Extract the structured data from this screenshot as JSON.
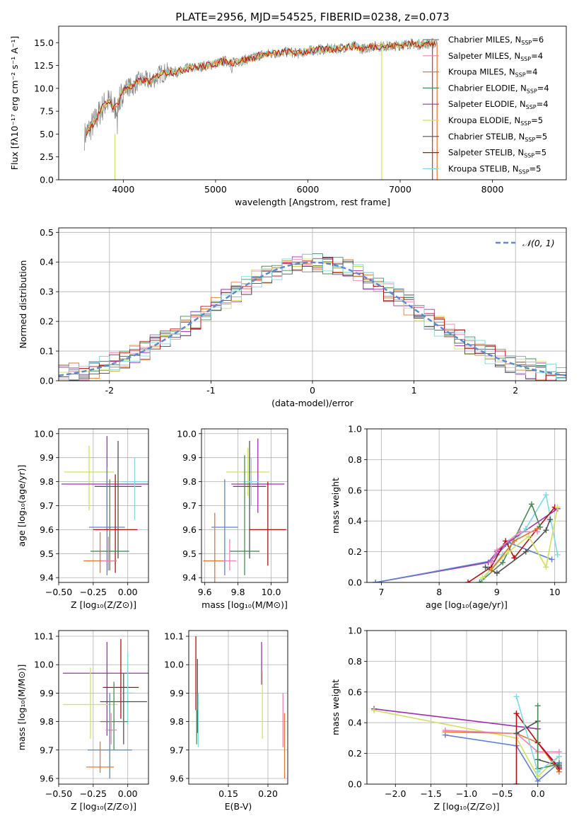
{
  "figure_title": "PLATE=2956, MJD=54525, FIBERID=0238, z=0.073",
  "colors": {
    "Chabrier MILES": "#808080",
    "Salpeter MILES": "#f080b8",
    "Kroupa MILES": "#e07830",
    "Chabrier ELODIE": "#4a8a5a",
    "Salpeter ELODIE": "#9a30b0",
    "Kroupa ELODIE": "#d0e060",
    "Chabrier STELIB": "#505050",
    "Salpeter STELIB": "#b01010",
    "Kroupa STELIB": "#80d8e0",
    "ZblueLine": "#6080d0",
    "gauss": "#5a8ad0"
  },
  "chart_data": [
    {
      "id": "spectrum",
      "type": "line",
      "title": "PLATE=2956, MJD=54525, FIBERID=0238, z=0.073",
      "xlabel": "wavelength [Angstrom, rest frame]",
      "ylabel": "Flux [fλ10⁻¹⁷ erg cm⁻² s⁻¹ A⁻¹]",
      "xlim": [
        3300,
        8800
      ],
      "ylim": [
        0,
        16.8
      ],
      "xticks": [
        4000,
        5000,
        6000,
        7000,
        8000
      ],
      "yticks": [
        0.0,
        2.5,
        5.0,
        7.5,
        10.0,
        12.5,
        15.0
      ],
      "legend_position": "right",
      "legend": [
        {
          "label": "Chabrier MILES, N",
          "sub": "SSP",
          "suffix": "=6"
        },
        {
          "label": "Salpeter MILES, N",
          "sub": "SSP",
          "suffix": "=4"
        },
        {
          "label": "Kroupa MILES, N",
          "sub": "SSP",
          "suffix": "=4"
        },
        {
          "label": "Chabrier ELODIE, N",
          "sub": "SSP",
          "suffix": "=4"
        },
        {
          "label": "Salpeter ELODIE, N",
          "sub": "SSP",
          "suffix": "=4"
        },
        {
          "label": "Kroupa ELODIE, N",
          "sub": "SSP",
          "suffix": "=5"
        },
        {
          "label": "Chabrier STELIB, N",
          "sub": "SSP",
          "suffix": "=5"
        },
        {
          "label": "Salpeter STELIB, N",
          "sub": "SSP",
          "suffix": "=5"
        },
        {
          "label": "Kroupa STELIB, N",
          "sub": "SSP",
          "suffix": "=5"
        }
      ],
      "series": [
        {
          "name": "data",
          "x": [
            3580,
            3650,
            3700,
            3750,
            3800,
            3850,
            3900,
            3950,
            4000,
            4050,
            4100,
            4150,
            4200,
            4300,
            4400,
            4500,
            4600,
            4700,
            4800,
            4900,
            5000,
            5100,
            5200,
            5300,
            5400,
            5500,
            5600,
            5700,
            5800,
            5900,
            6000,
            6100,
            6200,
            6300,
            6400,
            6500,
            6600,
            6700,
            6800,
            6900,
            7000,
            7100,
            7200,
            7300,
            7400
          ],
          "y": [
            4.8,
            5.8,
            6.5,
            7.5,
            8.3,
            8.6,
            7.8,
            8.6,
            9.8,
            10.2,
            10.1,
            10.7,
            10.9,
            10.8,
            11.6,
            11.8,
            11.8,
            12.2,
            12.3,
            12.5,
            12.7,
            13.0,
            12.8,
            13.1,
            13.3,
            13.7,
            13.8,
            13.9,
            14.0,
            13.8,
            14.1,
            14.2,
            14.3,
            14.3,
            14.5,
            14.6,
            14.3,
            14.6,
            14.6,
            14.6,
            14.7,
            14.9,
            14.8,
            14.9,
            14.9
          ]
        }
      ]
    },
    {
      "id": "residuals",
      "type": "histogram",
      "xlabel": "(data-model)/error",
      "ylabel": "Normed distribution",
      "xlim": [
        -2.5,
        2.5
      ],
      "ylim": [
        0,
        0.515
      ],
      "xticks": [
        -2,
        -1,
        0,
        1,
        2
      ],
      "yticks": [
        0.0,
        0.1,
        0.2,
        0.3,
        0.4,
        0.5
      ],
      "grid": true,
      "legend_position": "top-right",
      "gauss_label": "𝒩(0, 1)",
      "bin_width": 0.1
    },
    {
      "id": "age_vs_Z",
      "type": "errorbar",
      "xlabel": "Z [log₁₀(Z/Z⊙)]",
      "ylabel": "age  [log₁₀(age/yr)]",
      "xlim": [
        -0.5,
        0.15
      ],
      "ylim": [
        9.38,
        10.02
      ],
      "xticks": [
        -0.5,
        -0.25,
        0.0
      ],
      "xticklabels": [
        "−0.50",
        "−0.25",
        "0.00"
      ],
      "yticks": [
        9.4,
        9.5,
        9.6,
        9.7,
        9.8,
        9.9,
        10.0
      ],
      "grid": true,
      "points": [
        {
          "model": "Kroupa ELODIE",
          "x": -0.28,
          "y": 9.84,
          "xerr": 0.18,
          "yerr": [
            0.16,
            0.11
          ]
        },
        {
          "model": "Salpeter ELODIE",
          "x": -0.15,
          "y": 9.79,
          "xerr": 0.33,
          "yerr": [
            0.19,
            0.2
          ]
        },
        {
          "model": "Chabrier STELIB",
          "x": -0.07,
          "y": 9.78,
          "xerr": 0.17,
          "yerr": [
            0.3,
            0.19
          ]
        },
        {
          "model": "Kroupa STELIB",
          "x": 0.05,
          "y": 9.8,
          "xerr": 0.1,
          "yerr": [
            0.16,
            0.1
          ]
        },
        {
          "model": "ZblueLine",
          "x": -0.15,
          "y": 9.61,
          "xerr": 0.13,
          "yerr": [
            0.2,
            0.25
          ]
        },
        {
          "model": "Salpeter STELIB",
          "x": -0.09,
          "y": 9.6,
          "xerr": 0.16,
          "yerr": [
            0.18,
            0.23
          ]
        },
        {
          "model": "Chabrier ELODIE",
          "x": -0.13,
          "y": 9.51,
          "xerr": 0.14,
          "yerr": [
            0.08,
            0.3
          ]
        },
        {
          "model": "Kroupa MILES",
          "x": -0.2,
          "y": 9.47,
          "xerr": 0.12,
          "yerr": [
            0.05,
            0.12
          ]
        },
        {
          "model": "Salpeter MILES",
          "x": -0.14,
          "y": 9.47,
          "xerr": 0.05,
          "yerr": [
            0.04,
            0.1
          ]
        }
      ]
    },
    {
      "id": "age_vs_mass",
      "type": "errorbar",
      "xlabel": "mass [log₁₀(M/M⊙)]",
      "xlim": [
        9.58,
        10.1
      ],
      "ylim": [
        9.38,
        10.02
      ],
      "xticks": [
        9.6,
        9.8,
        10.0
      ],
      "xticklabels": [
        "9.6",
        "9.8",
        "10.0"
      ],
      "yticks": [
        9.4,
        9.5,
        9.6,
        9.7,
        9.8,
        9.9,
        10.0
      ],
      "grid": true,
      "points": [
        {
          "model": "Kroupa ELODIE",
          "x": 9.86,
          "y": 9.84,
          "xerr": 0.13,
          "yerr": [
            0.1,
            0.1
          ]
        },
        {
          "model": "Salpeter ELODIE",
          "x": 9.92,
          "y": 9.79,
          "xerr": 0.16,
          "yerr": [
            0.12,
            0.19
          ]
        },
        {
          "model": "Chabrier STELIB",
          "x": 9.87,
          "y": 9.78,
          "xerr": 0.1,
          "yerr": [
            0.3,
            0.19
          ]
        },
        {
          "model": "Kroupa STELIB",
          "x": 9.88,
          "y": 9.8,
          "xerr": 0.05,
          "yerr": [
            0.1,
            0.1
          ]
        },
        {
          "model": "ZblueLine",
          "x": 9.72,
          "y": 9.61,
          "xerr": 0.08,
          "yerr": [
            0.2,
            0.2
          ]
        },
        {
          "model": "Salpeter STELIB",
          "x": 9.98,
          "y": 9.6,
          "xerr": 0.11,
          "yerr": [
            0.15,
            0.2
          ]
        },
        {
          "model": "Chabrier ELODIE",
          "x": 9.84,
          "y": 9.51,
          "xerr": 0.09,
          "yerr": [
            0.1,
            0.4
          ]
        },
        {
          "model": "Kroupa MILES",
          "x": 9.66,
          "y": 9.47,
          "xerr": 0.07,
          "yerr": [
            0.1,
            0.2
          ]
        },
        {
          "model": "Salpeter MILES",
          "x": 9.75,
          "y": 9.47,
          "xerr": 0.04,
          "yerr": [
            0.04,
            0.09
          ]
        }
      ]
    },
    {
      "id": "massweight_vs_age",
      "type": "line",
      "xlabel": "age  [log₁₀(age/yr)]",
      "ylabel": "mass weight",
      "xlim": [
        6.75,
        10.2
      ],
      "ylim": [
        0,
        1.0
      ],
      "xticks": [
        7,
        8,
        9,
        10
      ],
      "yticks": [
        0.0,
        0.2,
        0.4,
        0.6,
        0.8,
        1.0
      ],
      "grid": true,
      "series": [
        {
          "model": "Salpeter ELODIE",
          "x": [
            6.9,
            8.85,
            9.0,
            9.15,
            10.05
          ],
          "y": [
            0.0,
            0.13,
            0.2,
            0.25,
            0.48
          ]
        },
        {
          "model": "ZblueLine",
          "x": [
            6.9,
            8.9,
            9.0,
            9.2,
            9.95
          ],
          "y": [
            0.0,
            0.14,
            0.18,
            0.26,
            0.15
          ]
        },
        {
          "model": "Kroupa STELIB",
          "x": [
            8.75,
            9.1,
            9.5,
            9.85,
            10.05
          ],
          "y": [
            0.02,
            0.18,
            0.35,
            0.57,
            0.18
          ]
        },
        {
          "model": "Salpeter STELIB",
          "x": [
            8.5,
            8.9,
            9.15,
            9.3,
            9.7,
            10.0
          ],
          "y": [
            0.0,
            0.1,
            0.27,
            0.16,
            0.35,
            0.49
          ]
        },
        {
          "model": "Chabrier STELIB",
          "x": [
            8.8,
            9.0,
            9.5,
            9.85,
            9.92
          ],
          "y": [
            0.1,
            0.06,
            0.2,
            0.34,
            0.41
          ]
        },
        {
          "model": "Chabrier ELODIE",
          "x": [
            8.7,
            9.1,
            9.6,
            9.75
          ],
          "y": [
            0.0,
            0.13,
            0.51,
            0.36
          ]
        },
        {
          "model": "Kroupa ELODIE",
          "x": [
            8.75,
            9.2,
            9.55,
            9.85,
            10.05
          ],
          "y": [
            0.03,
            0.2,
            0.3,
            0.1,
            0.49
          ]
        },
        {
          "model": "Kroupa MILES",
          "x": [
            8.9,
            9.3,
            9.7
          ],
          "y": [
            0.08,
            0.27,
            0.35
          ]
        },
        {
          "model": "Salpeter MILES",
          "x": [
            8.9,
            9.0,
            9.4,
            9.7
          ],
          "y": [
            0.13,
            0.21,
            0.33,
            0.33
          ]
        }
      ]
    },
    {
      "id": "mass_vs_Z",
      "type": "errorbar",
      "xlabel": "Z [log₁₀(Z/Z⊙)]",
      "ylabel": "mass [log₁₀(M/M⊙)]",
      "xlim": [
        -0.5,
        0.15
      ],
      "ylim": [
        9.58,
        10.12
      ],
      "xticks": [
        -0.5,
        -0.25,
        0.0
      ],
      "xticklabels": [
        "−0.50",
        "−0.25",
        "0.00"
      ],
      "yticks": [
        9.6,
        9.7,
        9.8,
        9.9,
        10.0,
        10.1
      ],
      "grid": true,
      "points": [
        {
          "model": "Salpeter ELODIE",
          "x": -0.15,
          "y": 9.97,
          "xerr": 0.32,
          "yerr": [
            0.22,
            0.11
          ]
        },
        {
          "model": "Salpeter STELIB",
          "x": -0.05,
          "y": 9.92,
          "xerr": 0.13,
          "yerr": [
            0.11,
            0.17
          ]
        },
        {
          "model": "Kroupa STELIB",
          "x": 0.0,
          "y": 9.9,
          "xerr": 0.05,
          "yerr": [
            0.11,
            0.14
          ]
        },
        {
          "model": "Chabrier STELIB",
          "x": -0.03,
          "y": 9.87,
          "xerr": 0.17,
          "yerr": [
            0.15,
            0.1
          ]
        },
        {
          "model": "Kroupa ELODIE",
          "x": -0.27,
          "y": 9.86,
          "xerr": 0.2,
          "yerr": [
            0.12,
            0.13
          ]
        },
        {
          "model": "Chabrier ELODIE",
          "x": -0.1,
          "y": 9.8,
          "xerr": 0.1,
          "yerr": [
            0.1,
            0.14
          ]
        },
        {
          "model": "Salpeter MILES",
          "x": -0.12,
          "y": 9.77,
          "xerr": 0.04,
          "yerr": [
            0.05,
            0.06
          ]
        },
        {
          "model": "ZblueLine",
          "x": -0.13,
          "y": 9.7,
          "xerr": 0.16,
          "yerr": [
            0.1,
            0.2
          ]
        },
        {
          "model": "Kroupa MILES",
          "x": -0.2,
          "y": 9.64,
          "xerr": 0.1,
          "yerr": [
            0.02,
            0.09
          ]
        }
      ]
    },
    {
      "id": "mass_vs_EBV",
      "type": "errorbar",
      "xlabel": "E(B-V)",
      "xlim": [
        0.1,
        0.225
      ],
      "ylim": [
        9.58,
        10.12
      ],
      "xticks": [
        0.15,
        0.2
      ],
      "xticklabels": [
        "0.15",
        "0.20"
      ],
      "yticks": [
        9.6,
        9.7,
        9.8,
        9.9,
        10.0,
        10.1
      ],
      "grid": true,
      "points": [
        {
          "model": "Salpeter STELIB",
          "x": 0.109,
          "y": 9.97,
          "xerr": 0.0,
          "yerr": [
            0.13,
            0.13
          ]
        },
        {
          "model": "Chabrier STELIB",
          "x": 0.111,
          "y": 9.88,
          "xerr": 0.0,
          "yerr": [
            0.12,
            0.14
          ]
        },
        {
          "model": "Kroupa STELIB",
          "x": 0.112,
          "y": 9.8,
          "xerr": 0.0,
          "yerr": [
            0.09,
            0.1
          ]
        },
        {
          "model": "Chabrier ELODIE",
          "x": 0.11,
          "y": 9.76,
          "xerr": 0.0,
          "yerr": [
            0.04,
            0.08
          ]
        },
        {
          "model": "Salpeter ELODIE",
          "x": 0.192,
          "y": 9.99,
          "xerr": 0.0,
          "yerr": [
            0.06,
            0.09
          ]
        },
        {
          "model": "Kroupa ELODIE",
          "x": 0.193,
          "y": 9.86,
          "xerr": 0.0,
          "yerr": [
            0.12,
            0.12
          ]
        },
        {
          "model": "Salpeter MILES",
          "x": 0.219,
          "y": 9.83,
          "xerr": 0.0,
          "yerr": [
            0.12,
            0.07
          ]
        },
        {
          "model": "Kroupa MILES",
          "x": 0.221,
          "y": 9.72,
          "xerr": 0.0,
          "yerr": [
            0.12,
            0.11
          ]
        }
      ]
    },
    {
      "id": "massweight_vs_Z",
      "type": "line",
      "xlabel": "Z [log₁₀(Z/Z⊙)]",
      "ylabel": "mass weight",
      "xlim": [
        -2.4,
        0.4
      ],
      "ylim": [
        0,
        1.0
      ],
      "xticks": [
        -2.0,
        -1.5,
        -1.0,
        -0.5,
        0.0
      ],
      "xticklabels": [
        "−2.0",
        "−1.5",
        "−1.0",
        "−0.5",
        "0.0"
      ],
      "yticks": [
        0.0,
        0.2,
        0.4,
        0.6,
        0.8,
        1.0
      ],
      "grid": true,
      "series": [
        {
          "model": "Salpeter ELODIE",
          "x": [
            -2.3,
            0.0,
            0.0,
            0.3
          ],
          "y": [
            0.49,
            0.36,
            0.27,
            0.11
          ]
        },
        {
          "model": "Kroupa ELODIE",
          "x": [
            -2.3,
            -0.3,
            0.0,
            0.3
          ],
          "y": [
            0.48,
            0.3,
            0.05,
            0.18
          ]
        },
        {
          "model": "ZblueLine",
          "x": [
            -1.3,
            -0.3,
            0.0,
            0.3
          ],
          "y": [
            0.32,
            0.25,
            0.02,
            0.14
          ]
        },
        {
          "model": "Kroupa MILES",
          "x": [
            -1.3,
            -0.3,
            0.0,
            0.3
          ],
          "y": [
            0.34,
            0.33,
            0.27,
            0.08
          ]
        },
        {
          "model": "Salpeter MILES",
          "x": [
            -1.3,
            -0.3,
            0.0,
            0.3
          ],
          "y": [
            0.35,
            0.33,
            0.21,
            0.21
          ]
        },
        {
          "model": "Salpeter STELIB",
          "x": [
            -0.3,
            -0.3,
            0.0,
            0.3
          ],
          "y": [
            0.0,
            0.46,
            0.27,
            0.1
          ]
        },
        {
          "model": "Chabrier STELIB",
          "x": [
            -0.3,
            0.0,
            0.0,
            0.3
          ],
          "y": [
            0.33,
            0.41,
            0.16,
            0.12
          ]
        },
        {
          "model": "Chabrier ELODIE",
          "x": [
            0.0,
            0.0,
            0.3
          ],
          "y": [
            0.51,
            0.1,
            0.13
          ]
        },
        {
          "model": "Kroupa STELIB",
          "x": [
            -0.3,
            0.0,
            0.3
          ],
          "y": [
            0.57,
            0.08,
            0.18
          ]
        }
      ]
    }
  ]
}
